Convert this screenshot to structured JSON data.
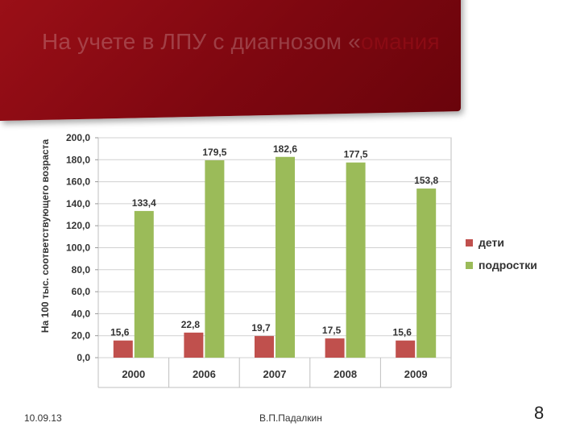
{
  "slide": {
    "title_hidden": "На учете в ЛПУ с диагнозом «",
    "title_visible": "омания",
    "date": "10.09.13",
    "author": "В.П.Падалкин",
    "page": "8",
    "banner_color": "#8a0b14"
  },
  "chart_data": {
    "type": "bar",
    "categories": [
      "2000",
      "2006",
      "2007",
      "2008",
      "2009"
    ],
    "series": [
      {
        "name": "дети",
        "color": "#c0504d",
        "values": [
          15.6,
          22.8,
          19.7,
          17.5,
          15.6
        ],
        "labels": [
          "15,6",
          "22,8",
          "19,7",
          "17,5",
          "15,6"
        ]
      },
      {
        "name": "подростки",
        "color": "#9bbb59",
        "values": [
          133.4,
          179.5,
          182.6,
          177.5,
          153.8
        ],
        "labels": [
          "133,4",
          "179,5",
          "182,6",
          "177,5",
          "153,8"
        ]
      }
    ],
    "ylabel": "На 100 тыс. соответствующего возраста",
    "ylim": [
      0,
      200
    ],
    "yticks": [
      0,
      20,
      40,
      60,
      80,
      100,
      120,
      140,
      160,
      180,
      200
    ],
    "ytick_labels": [
      "0,0",
      "20,0",
      "40,0",
      "60,0",
      "80,0",
      "100,0",
      "120,0",
      "140,0",
      "160,0",
      "180,0",
      "200,0"
    ],
    "grid": true,
    "legend": "right"
  }
}
